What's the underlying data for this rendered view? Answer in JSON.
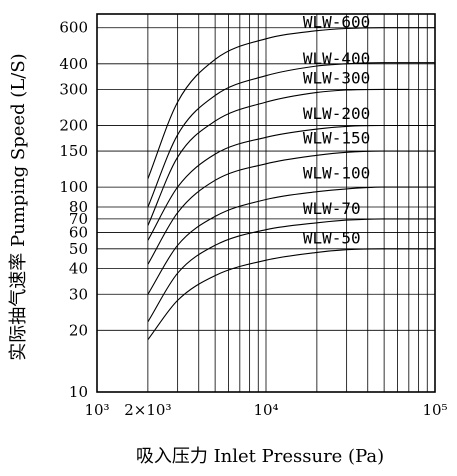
{
  "chart_data": {
    "type": "line",
    "xlabel": "吸入压力  Inlet Pressure (Pa)",
    "ylabel": "实际抽气速率  Pumping Speed (L/S)",
    "x_scale": "log",
    "y_scale": "log",
    "xlim": [
      1000,
      100000
    ],
    "ylim": [
      10,
      700
    ],
    "grid": true,
    "x_ticks": [
      {
        "value": 1000,
        "label": "10³"
      },
      {
        "value": 2000,
        "label": "2×10³"
      },
      {
        "value": 10000,
        "label": "10⁴"
      },
      {
        "value": 100000,
        "label": "10⁵"
      }
    ],
    "y_ticks": [
      {
        "value": 10,
        "label": "10"
      },
      {
        "value": 20,
        "label": "20"
      },
      {
        "value": 30,
        "label": "30"
      },
      {
        "value": 40,
        "label": "40"
      },
      {
        "value": 50,
        "label": "50"
      },
      {
        "value": 60,
        "label": "60"
      },
      {
        "value": 70,
        "label": "70"
      },
      {
        "value": 80,
        "label": "80"
      },
      {
        "value": 100,
        "label": "100"
      },
      {
        "value": 150,
        "label": "150"
      },
      {
        "value": 200,
        "label": "200"
      },
      {
        "value": 300,
        "label": "300"
      },
      {
        "value": 400,
        "label": "400"
      },
      {
        "value": 600,
        "label": "600"
      }
    ],
    "series": [
      {
        "name": "WLW-600",
        "label_at": [
          20000,
          600
        ],
        "x": [
          2000,
          3000,
          5000,
          10000,
          20000,
          30000,
          50000,
          100000
        ],
        "y": [
          110,
          260,
          420,
          530,
          580,
          595,
          600,
          600
        ]
      },
      {
        "name": "WLW-400",
        "label_at": [
          20000,
          400
        ],
        "x": [
          2000,
          3000,
          5000,
          10000,
          20000,
          30000,
          50000,
          100000
        ],
        "y": [
          80,
          180,
          280,
          350,
          390,
          400,
          405,
          405
        ]
      },
      {
        "name": "WLW-300",
        "label_at": [
          20000,
          320
        ],
        "x": [
          2000,
          3000,
          5000,
          10000,
          20000,
          30000,
          50000,
          70000
        ],
        "y": [
          65,
          140,
          210,
          260,
          290,
          298,
          300,
          300
        ]
      },
      {
        "name": "WLW-200",
        "label_at": [
          20000,
          215
        ],
        "x": [
          2000,
          3000,
          5000,
          10000,
          20000,
          30000,
          50000,
          100000
        ],
        "y": [
          55,
          100,
          145,
          175,
          192,
          198,
          200,
          200
        ]
      },
      {
        "name": "WLW-150",
        "label_at": [
          20000,
          163
        ],
        "x": [
          2000,
          3000,
          5000,
          10000,
          20000,
          30000,
          50000,
          100000
        ],
        "y": [
          42,
          75,
          108,
          130,
          143,
          148,
          150,
          150
        ]
      },
      {
        "name": "WLW-100",
        "label_at": [
          20000,
          110
        ],
        "x": [
          2000,
          3000,
          5000,
          10000,
          20000,
          30000,
          50000,
          100000
        ],
        "y": [
          30,
          52,
          72,
          87,
          95,
          98,
          100,
          100
        ]
      },
      {
        "name": "WLW-70",
        "label_at": [
          20000,
          74
        ],
        "x": [
          2000,
          3000,
          5000,
          10000,
          20000,
          30000,
          50000,
          100000
        ],
        "y": [
          22,
          38,
          52,
          62,
          67,
          69,
          70,
          70
        ]
      },
      {
        "name": "WLW-50",
        "label_at": [
          20000,
          53
        ],
        "x": [
          2000,
          3000,
          5000,
          10000,
          20000,
          30000,
          50000,
          100000
        ],
        "y": [
          18,
          28,
          37,
          44,
          48,
          49.5,
          50,
          50
        ]
      }
    ]
  }
}
